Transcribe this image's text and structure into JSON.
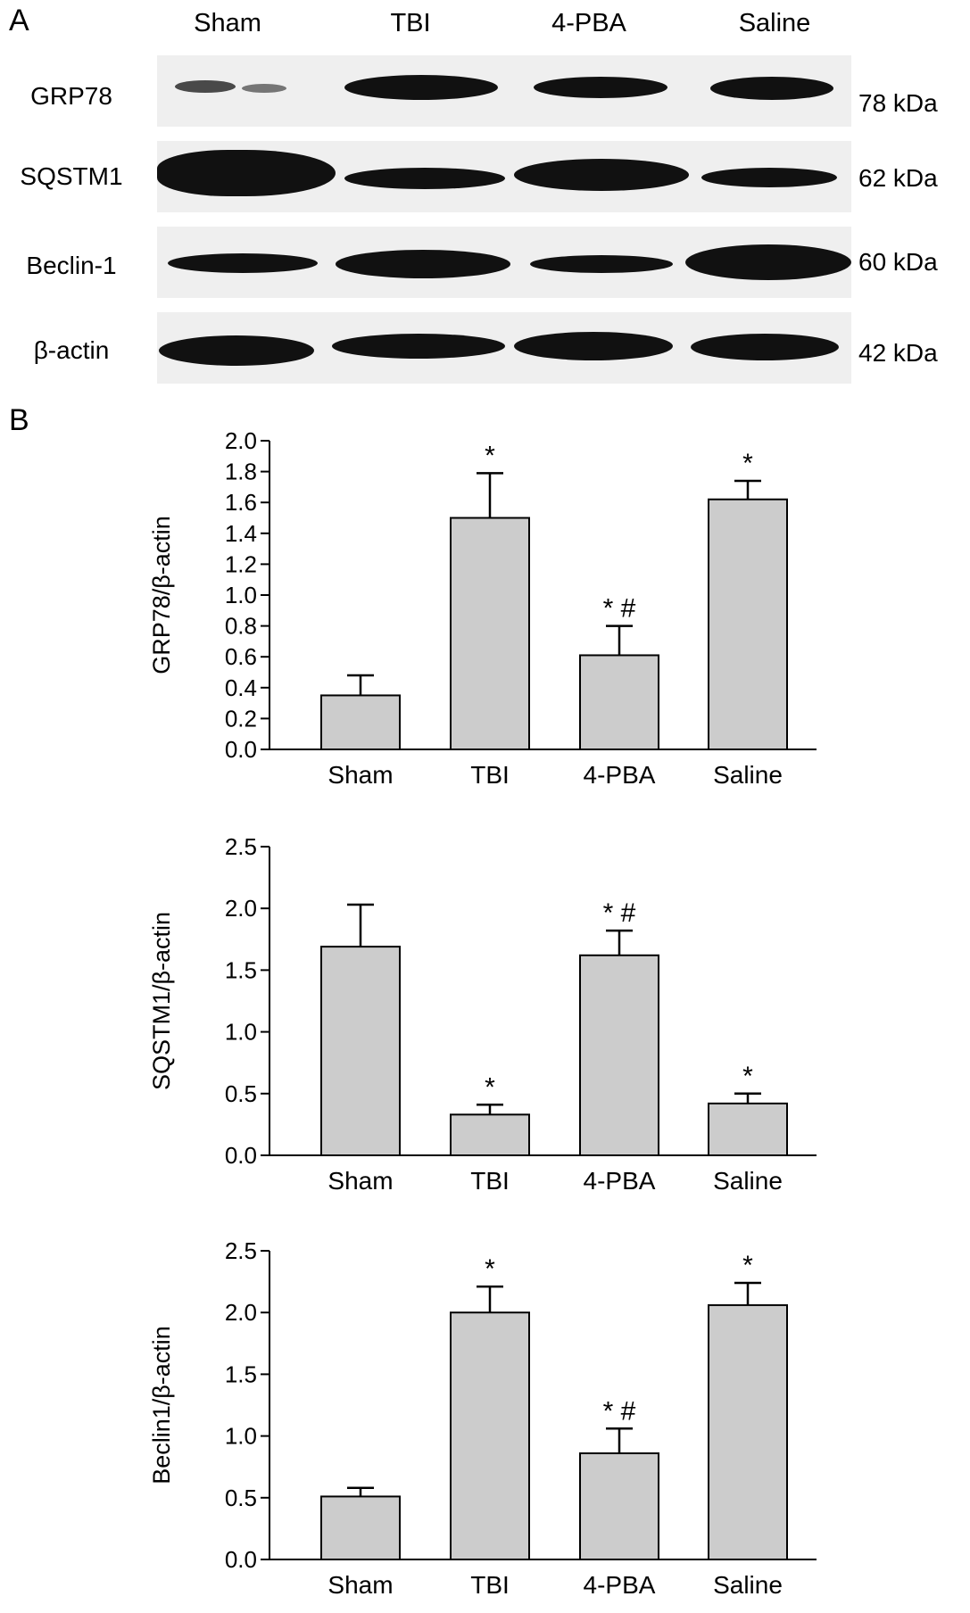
{
  "panel_a": {
    "letter": "A",
    "lanes": [
      "Sham",
      "TBI",
      "4-PBA",
      "Saline"
    ],
    "blots": [
      {
        "protein": "GRP78",
        "kda": "78 kDa"
      },
      {
        "protein": "SQSTM1",
        "kda": "62 kDa"
      },
      {
        "protein": "Beclin-1",
        "kda": "60 kDa"
      },
      {
        "protein": "β-actin",
        "kda": "42 kDa"
      }
    ]
  },
  "panel_b": {
    "letter": "B"
  },
  "chart_data": [
    {
      "type": "bar",
      "categories": [
        "Sham",
        "TBI",
        "4-PBA",
        "Saline"
      ],
      "values": [
        0.35,
        1.5,
        0.61,
        1.62
      ],
      "errors": [
        0.13,
        0.29,
        0.19,
        0.12
      ],
      "annotations": [
        "",
        "*",
        "* #",
        "*"
      ],
      "title": "",
      "xlabel": "",
      "ylabel": "GRP78/β-actin",
      "ylim": [
        0,
        2.0
      ],
      "yticks": [
        "0.0",
        "0.2",
        "0.4",
        "0.6",
        "0.8",
        "1.0",
        "1.2",
        "1.4",
        "1.6",
        "1.8",
        "2.0"
      ],
      "bar_color": "#cccccc"
    },
    {
      "type": "bar",
      "categories": [
        "Sham",
        "TBI",
        "4-PBA",
        "Saline"
      ],
      "values": [
        1.69,
        0.33,
        1.62,
        0.42
      ],
      "errors": [
        0.34,
        0.08,
        0.2,
        0.08
      ],
      "annotations": [
        "",
        "*",
        "* #",
        "*"
      ],
      "title": "",
      "xlabel": "",
      "ylabel": "SQSTM1/β-actin",
      "ylim": [
        0,
        2.5
      ],
      "yticks": [
        "0.0",
        "0.5",
        "1.0",
        "1.5",
        "2.0",
        "2.5"
      ],
      "bar_color": "#cccccc"
    },
    {
      "type": "bar",
      "categories": [
        "Sham",
        "TBI",
        "4-PBA",
        "Saline"
      ],
      "values": [
        0.51,
        2.0,
        0.86,
        2.06
      ],
      "errors": [
        0.07,
        0.21,
        0.2,
        0.18
      ],
      "annotations": [
        "",
        "*",
        "* #",
        "*"
      ],
      "title": "",
      "xlabel": "",
      "ylabel": "Beclin1/β-actin",
      "ylim": [
        0,
        2.5
      ],
      "yticks": [
        "0.0",
        "0.5",
        "1.0",
        "1.5",
        "2.0",
        "2.5"
      ],
      "bar_color": "#cccccc"
    }
  ]
}
